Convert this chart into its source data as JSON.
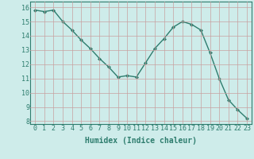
{
  "x": [
    0,
    1,
    2,
    3,
    4,
    5,
    6,
    7,
    8,
    9,
    10,
    11,
    12,
    13,
    14,
    15,
    16,
    17,
    18,
    19,
    20,
    21,
    22,
    23
  ],
  "y": [
    15.8,
    15.7,
    15.8,
    15.0,
    14.4,
    13.7,
    13.1,
    12.4,
    11.8,
    11.1,
    11.2,
    11.1,
    12.1,
    13.1,
    13.8,
    14.6,
    15.0,
    14.8,
    14.4,
    12.8,
    11.0,
    9.5,
    8.8,
    8.2
  ],
  "line_color": "#2e7d6e",
  "marker": "D",
  "marker_size": 2,
  "line_width": 1.0,
  "xlabel": "Humidex (Indice chaleur)",
  "xlabel_fontsize": 7,
  "ylim": [
    7.8,
    16.4
  ],
  "xlim": [
    -0.5,
    23.5
  ],
  "yticks": [
    8,
    9,
    10,
    11,
    12,
    13,
    14,
    15,
    16
  ],
  "xticks": [
    0,
    1,
    2,
    3,
    4,
    5,
    6,
    7,
    8,
    9,
    10,
    11,
    12,
    13,
    14,
    15,
    16,
    17,
    18,
    19,
    20,
    21,
    22,
    23
  ],
  "background_color": "#ceecea",
  "grid_color": "#c8a0a0",
  "tick_color": "#2e7d6e",
  "tick_fontsize": 6,
  "xlabel_fontweight": "bold"
}
